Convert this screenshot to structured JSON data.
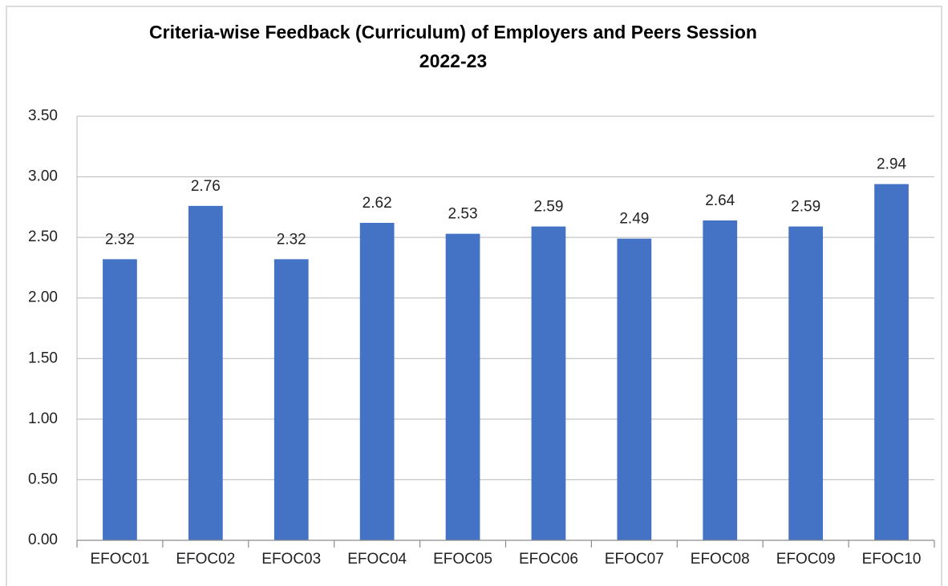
{
  "chart_data": {
    "type": "bar",
    "title": [
      "Criteria-wise Feedback (Curriculum) of  Employers and Peers Session",
      "2022-23"
    ],
    "categories": [
      "EFOC01",
      "EFOC02",
      "EFOC03",
      "EFOC04",
      "EFOC05",
      "EFOC06",
      "EFOC07",
      "EFOC08",
      "EFOC09",
      "EFOC10"
    ],
    "values": [
      2.32,
      2.76,
      2.32,
      2.62,
      2.53,
      2.59,
      2.49,
      2.64,
      2.59,
      2.94
    ],
    "color": "#4472c4",
    "ylim": [
      0,
      3.5
    ],
    "yticks": [
      {
        "value": 0,
        "label": "0.00"
      },
      {
        "value": 0.5,
        "label": "0.50"
      },
      {
        "value": 1,
        "label": "1.00"
      },
      {
        "value": 1.5,
        "label": "1.50"
      },
      {
        "value": 2,
        "label": "2.00"
      },
      {
        "value": 2.5,
        "label": "2.50"
      },
      {
        "value": 3,
        "label": "3.00"
      },
      {
        "value": 3.5,
        "label": "3.50"
      }
    ],
    "grid": true
  }
}
